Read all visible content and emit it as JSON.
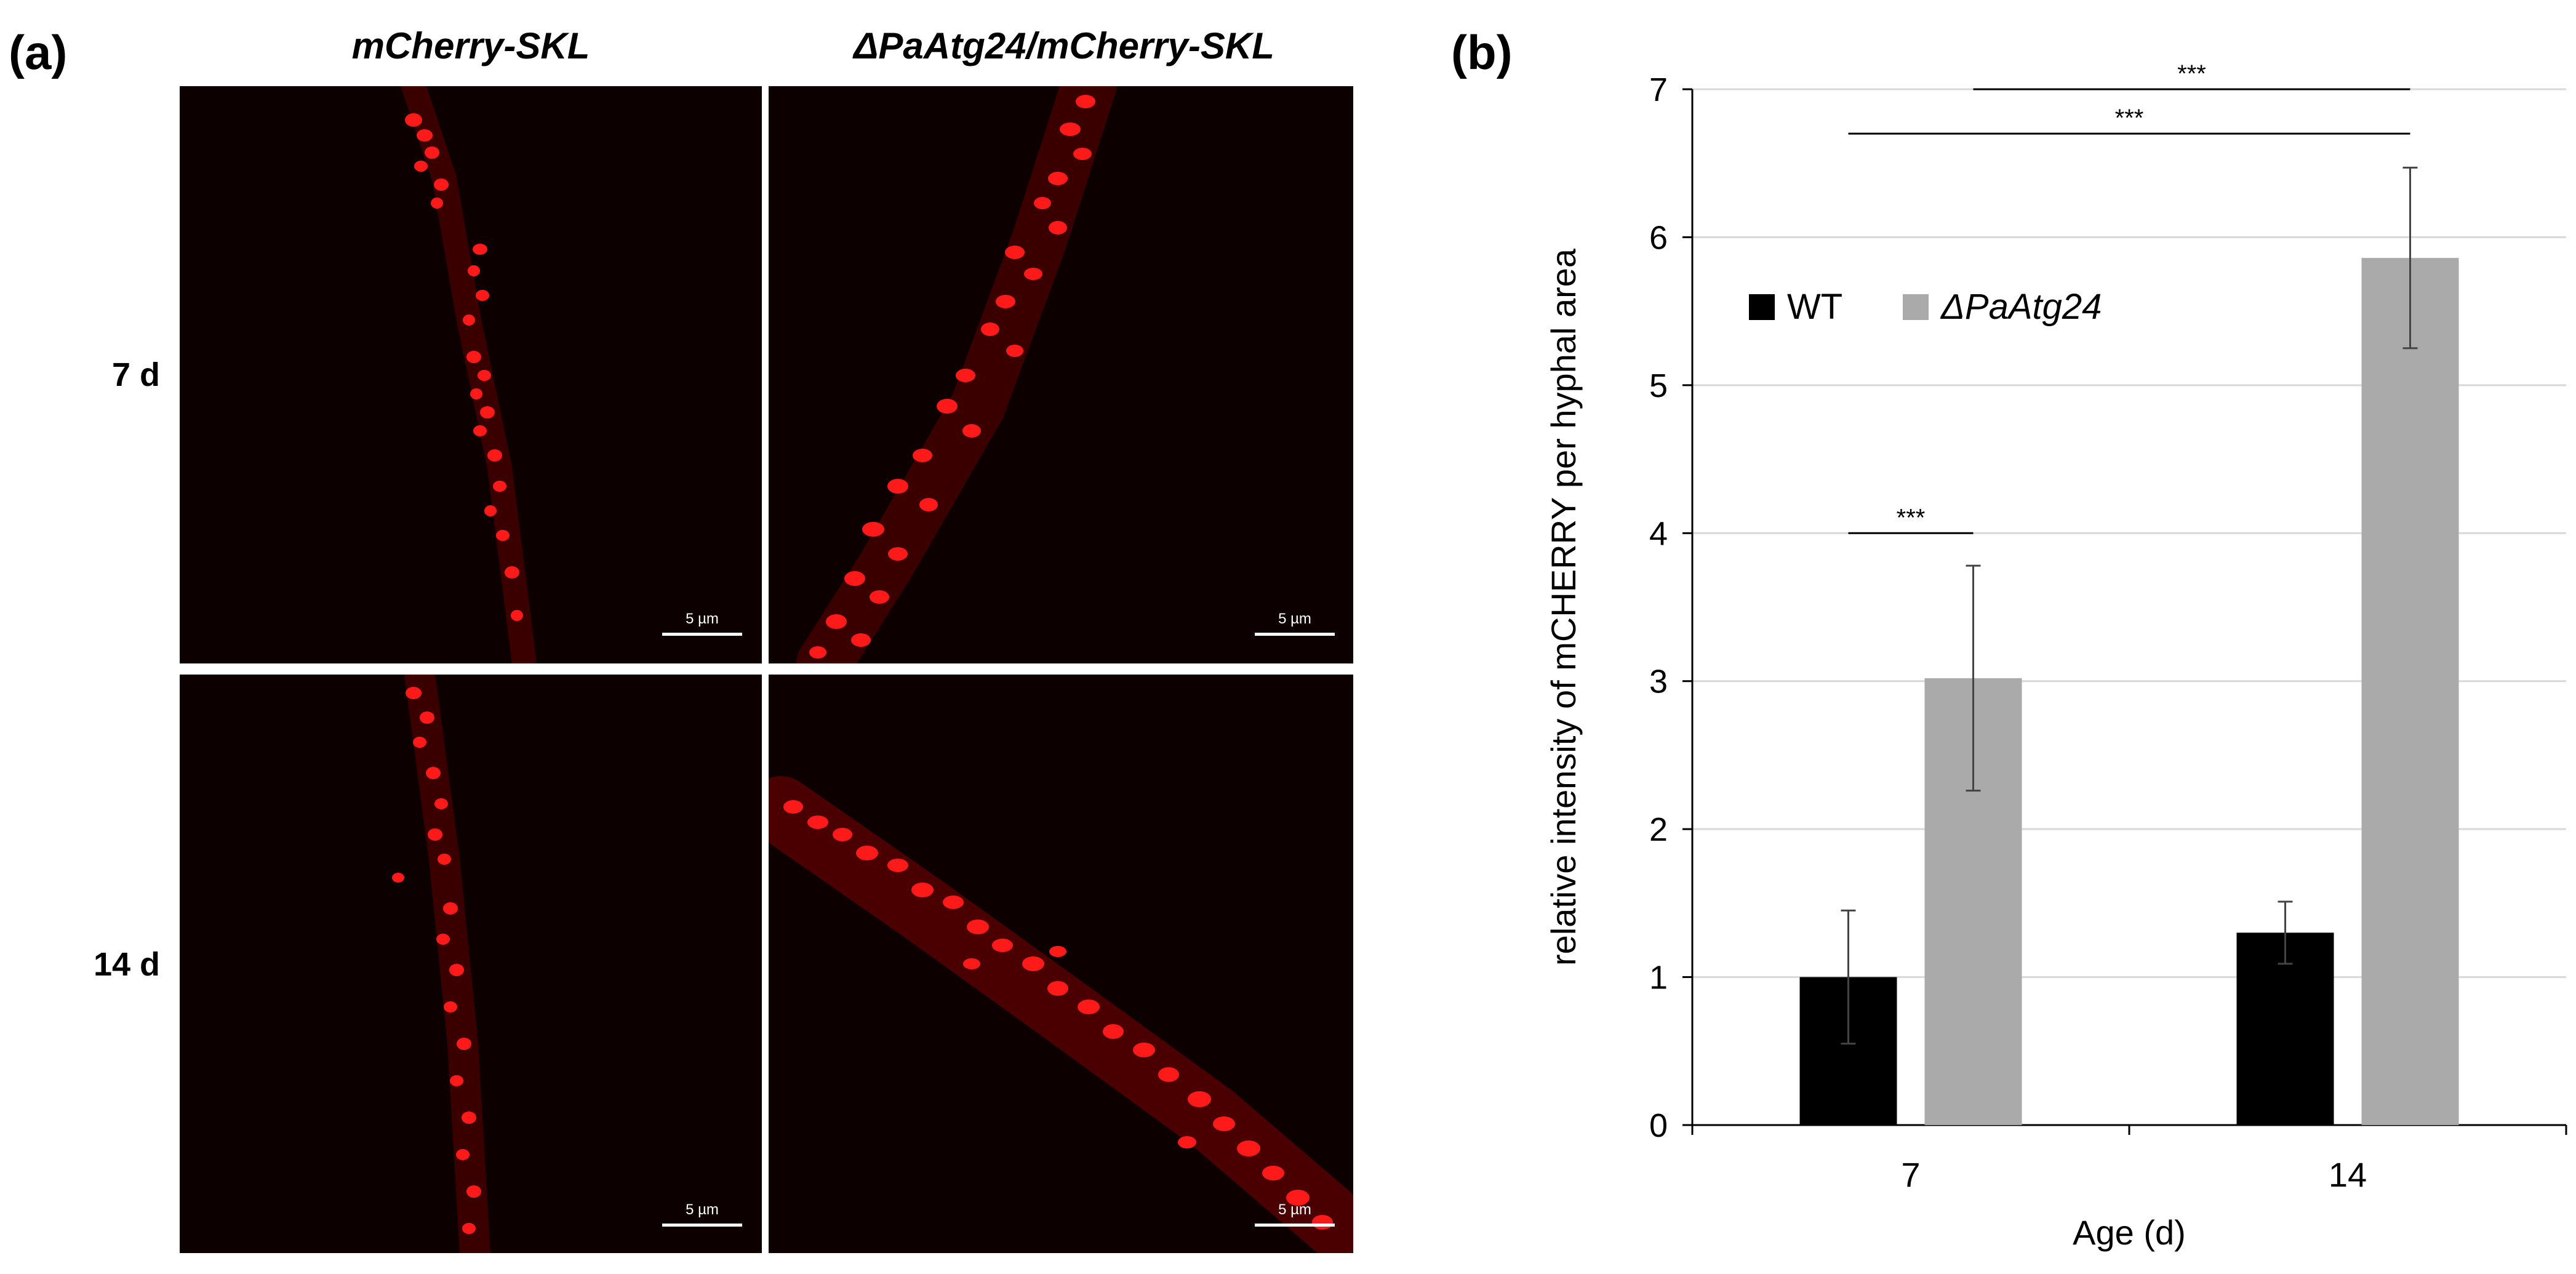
{
  "panel_a": {
    "letter": "(a)",
    "columns": [
      "mCherry-SKL",
      "ΔPaAtg24/mCherry-SKL"
    ],
    "rows": [
      "7 d",
      "14 d"
    ],
    "scale_bar": "5 µm"
  },
  "panel_b": {
    "letter": "(b)"
  },
  "colors": {
    "wt": "#000000",
    "mutant": "#aaaaaa",
    "micro_bg": "#0c0000",
    "fluor": "#ff1a1a"
  },
  "chart_data": {
    "type": "bar",
    "xlabel": "Age (d)",
    "ylabel": "relative intensity of mCHERRY per hyphal area",
    "categories": [
      "7",
      "14"
    ],
    "ylim": [
      0,
      7
    ],
    "yticks": [
      0,
      1,
      2,
      3,
      4,
      5,
      6,
      7
    ],
    "grid": true,
    "legend_position": "upper-left",
    "series": [
      {
        "name": "WT",
        "color": "#000000",
        "values": [
          1.0,
          1.3
        ],
        "errors": [
          0.45,
          0.21
        ]
      },
      {
        "name": "ΔPaAtg24",
        "color": "#aaaaaa",
        "values": [
          3.02,
          5.86
        ],
        "errors": [
          0.76,
          0.61
        ]
      }
    ],
    "significance": [
      {
        "label": "***",
        "from": [
          0,
          0
        ],
        "to": [
          0,
          1
        ],
        "y": 4.0
      },
      {
        "label": "***",
        "from": [
          0,
          0
        ],
        "to": [
          1,
          1
        ],
        "y": 6.7
      },
      {
        "label": "***",
        "from": [
          0,
          1
        ],
        "to": [
          1,
          1
        ],
        "y": 7.0
      }
    ]
  }
}
